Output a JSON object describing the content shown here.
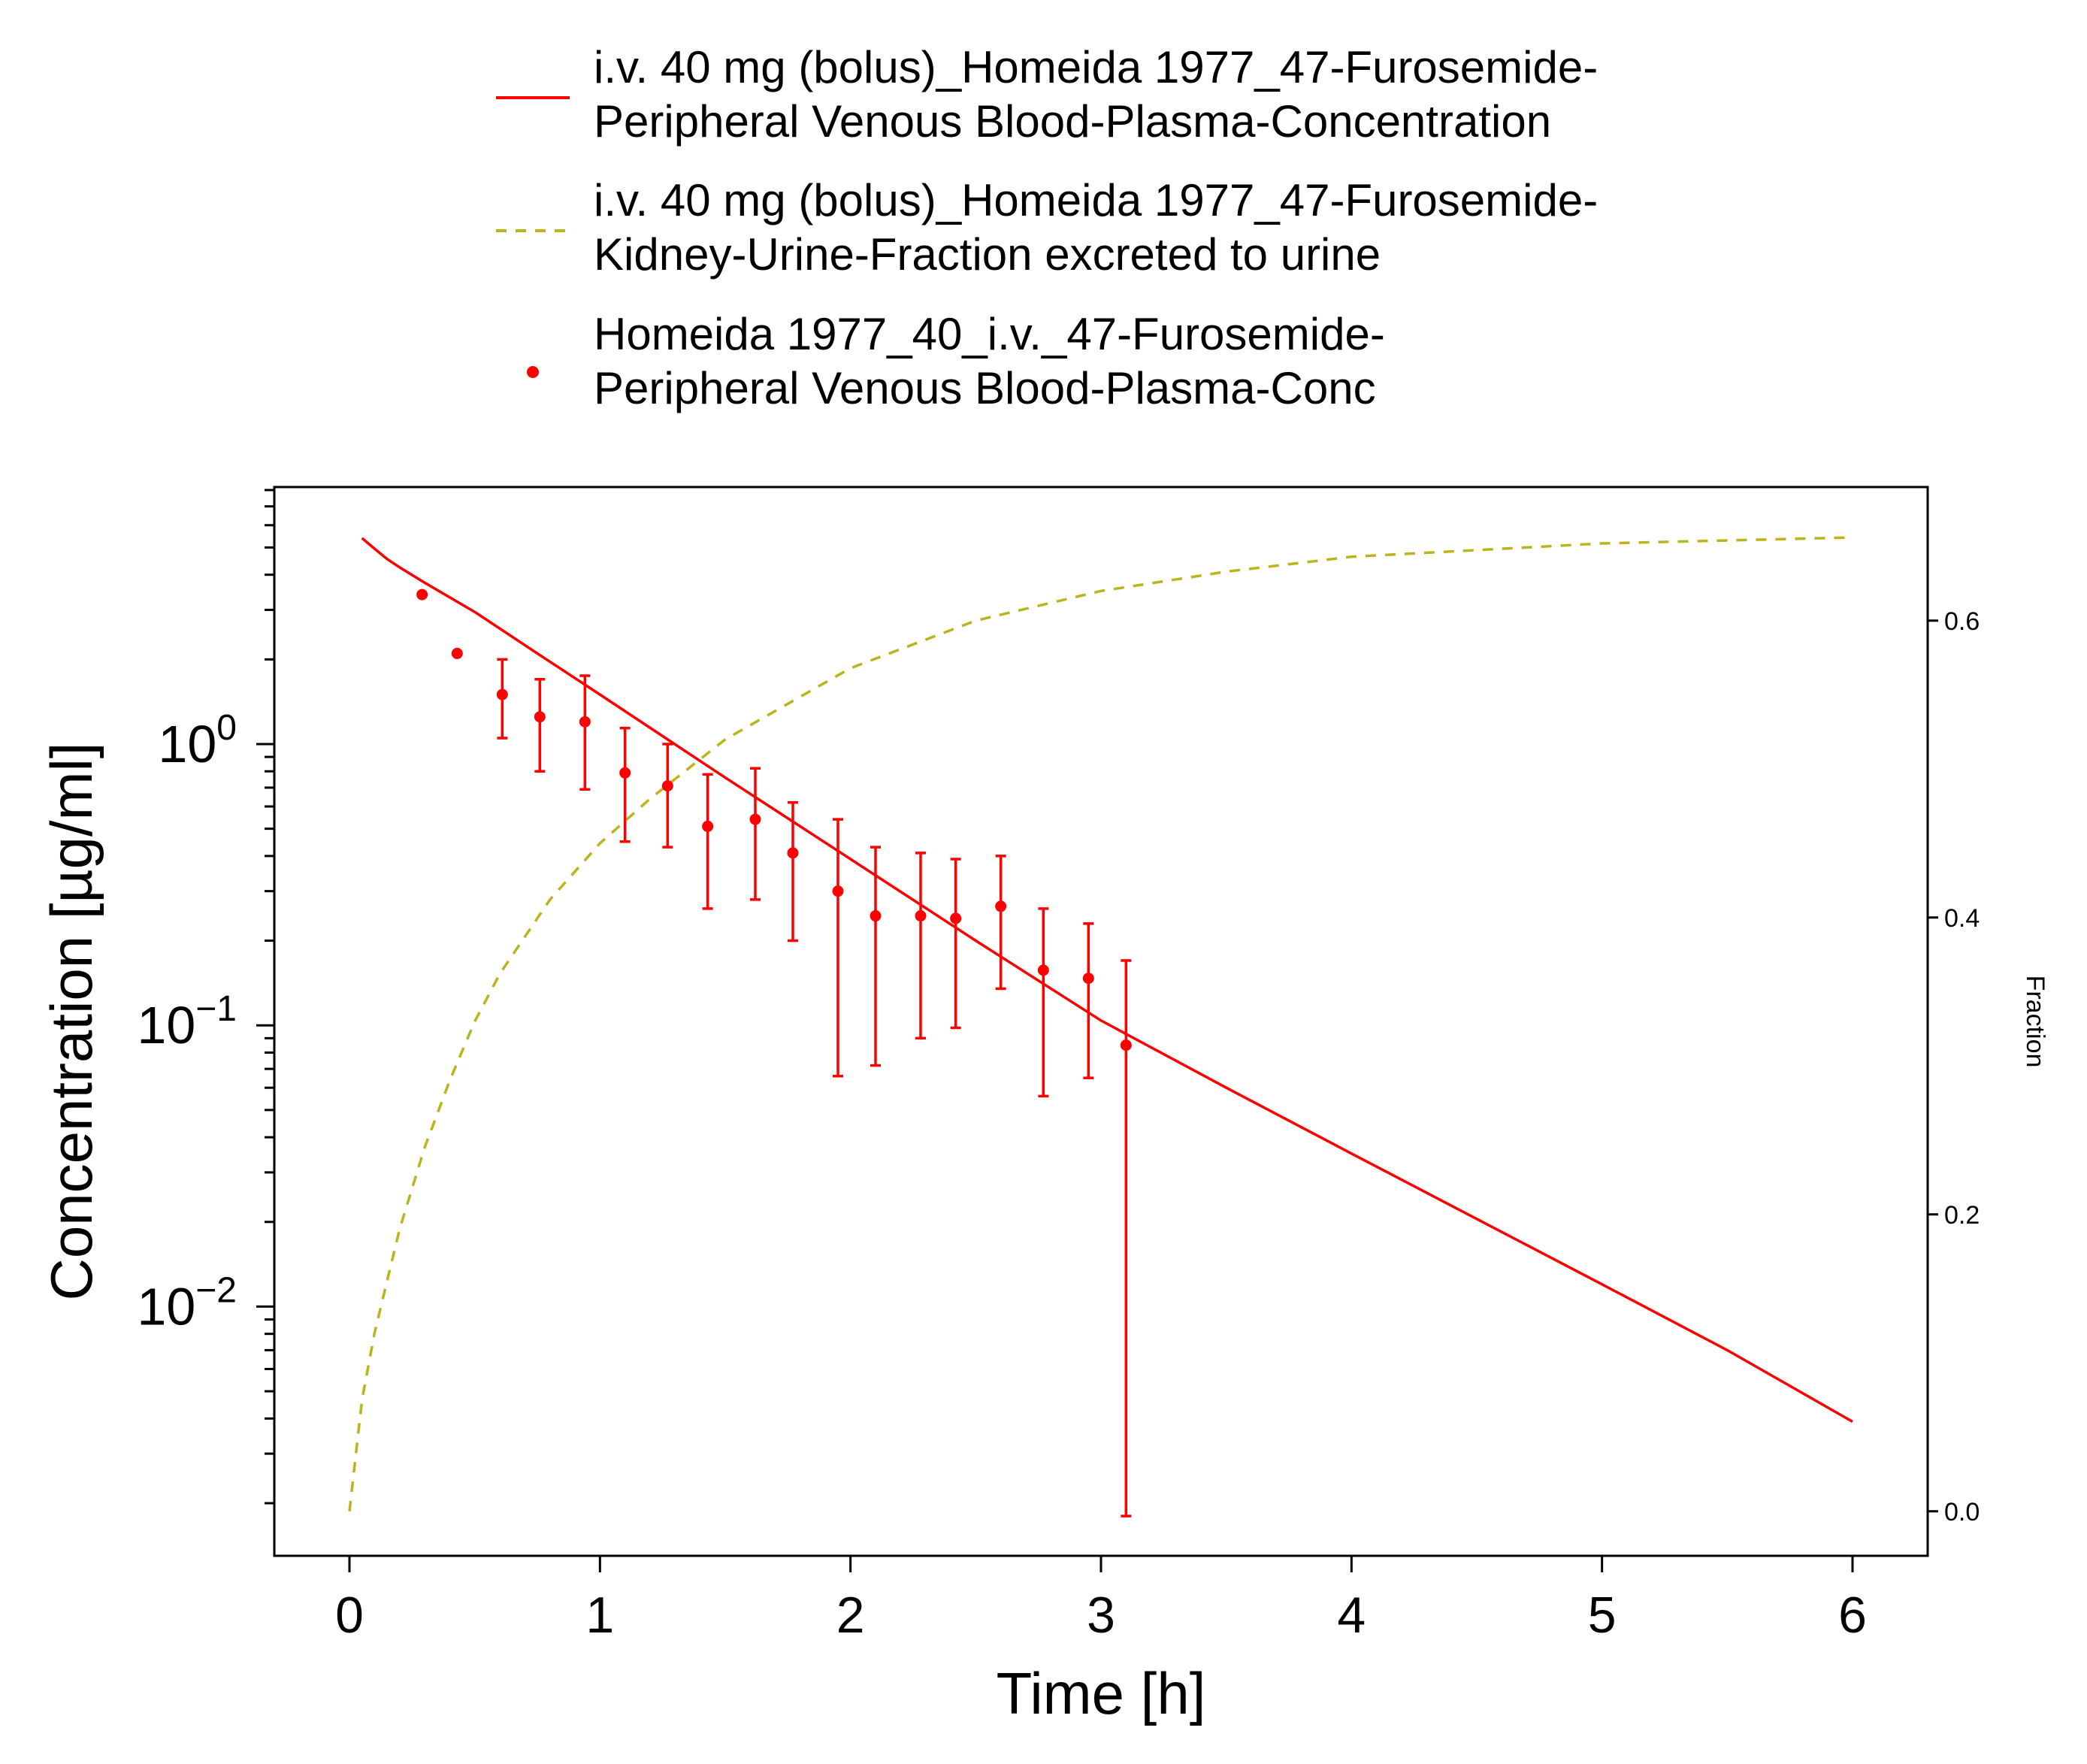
{
  "chart_data": {
    "type": "line",
    "xlabel": "Time [h]",
    "ylabel": "Concentration [µg/ml]",
    "y2label": "Fraction",
    "xlim": [
      -0.3,
      6.3
    ],
    "ylim": [
      0.0013,
      8.2
    ],
    "ylog": true,
    "y2lim": [
      -0.03,
      0.69
    ],
    "x_ticks": [
      0,
      1,
      2,
      3,
      4,
      5,
      6
    ],
    "y_ticks": [
      {
        "value": 1,
        "base": "10",
        "exp": "0"
      },
      {
        "value": 0.1,
        "base": "10",
        "exp": "−1"
      },
      {
        "value": 0.01,
        "base": "10",
        "exp": "−2"
      }
    ],
    "y2_ticks": [
      "0.0",
      "0.2",
      "0.4",
      "0.6"
    ],
    "grid": false,
    "legend_position": "top",
    "legend": [
      {
        "marker": "line",
        "color": "#ff0000",
        "lines": [
          "i.v. 40 mg (bolus)_Homeida 1977_47-Furosemide-",
          "Peripheral Venous Blood-Plasma-Concentration"
        ]
      },
      {
        "marker": "dashed",
        "color": "#bdb31d",
        "lines": [
          "i.v. 40 mg (bolus)_Homeida 1977_47-Furosemide-",
          "Kidney-Urine-Fraction excreted to urine"
        ]
      },
      {
        "marker": "point",
        "color": "#ff0000",
        "lines": [
          "Homeida 1977_40_i.v._47-Furosemide-",
          "Peripheral Venous Blood-Plasma-Conc"
        ]
      }
    ],
    "series": [
      {
        "name": "i.v. 40 mg (bolus)_Homeida 1977_47-Furosemide-Peripheral Venous Blood-Plasma-Concentration",
        "axis": "left",
        "style": "line",
        "color": "#ff0000",
        "x": [
          0.05,
          0.1,
          0.15,
          0.2,
          0.3,
          0.5,
          0.75,
          1.0,
          1.5,
          2.0,
          2.5,
          3.0,
          3.5,
          4.0,
          4.5,
          5.0,
          5.5,
          6.0
        ],
        "y": [
          5.4,
          4.95,
          4.55,
          4.25,
          3.75,
          2.95,
          2.1,
          1.5,
          0.76,
          0.39,
          0.2,
          0.104,
          0.06,
          0.035,
          0.0205,
          0.012,
          0.007,
          0.0039
        ]
      },
      {
        "name": "i.v. 40 mg (bolus)_Homeida 1977_47-Furosemide-Kidney-Urine-Fraction excreted to urine",
        "axis": "right",
        "style": "dashed",
        "color": "#bdb31d",
        "x": [
          0.0,
          0.05,
          0.1,
          0.2,
          0.3,
          0.4,
          0.5,
          0.6,
          0.8,
          1.0,
          1.2,
          1.5,
          2.0,
          2.5,
          3.0,
          3.5,
          4.0,
          5.0,
          6.0
        ],
        "y": [
          0.0,
          0.075,
          0.12,
          0.19,
          0.245,
          0.29,
          0.33,
          0.362,
          0.412,
          0.45,
          0.48,
          0.52,
          0.568,
          0.6,
          0.62,
          0.633,
          0.643,
          0.652,
          0.656
        ]
      },
      {
        "name": "Homeida 1977_40_i.v._47-Furosemide-Peripheral Venous Blood-Plasma-Conc",
        "axis": "left",
        "style": "points",
        "color": "#ff0000",
        "x": [
          0.29,
          0.43,
          0.61,
          0.76,
          0.94,
          1.1,
          1.27,
          1.43,
          1.62,
          1.77,
          1.95,
          2.1,
          2.28,
          2.42,
          2.6,
          2.77,
          2.95,
          3.1
        ],
        "y": [
          3.4,
          2.1,
          1.5,
          1.25,
          1.2,
          0.79,
          0.71,
          0.51,
          0.54,
          0.41,
          0.3,
          0.245,
          0.245,
          0.24,
          0.265,
          0.157,
          0.147,
          0.085
        ],
        "y_lower": [
          null,
          null,
          1.05,
          0.8,
          0.69,
          0.45,
          0.43,
          0.26,
          0.28,
          0.2,
          0.066,
          0.072,
          0.09,
          0.098,
          0.135,
          0.056,
          0.065,
          0.0018
        ],
        "y_upper": [
          null,
          null,
          2.0,
          1.7,
          1.75,
          1.14,
          1.0,
          0.78,
          0.82,
          0.62,
          0.54,
          0.43,
          0.41,
          0.39,
          0.4,
          0.26,
          0.23,
          0.17
        ]
      }
    ]
  }
}
